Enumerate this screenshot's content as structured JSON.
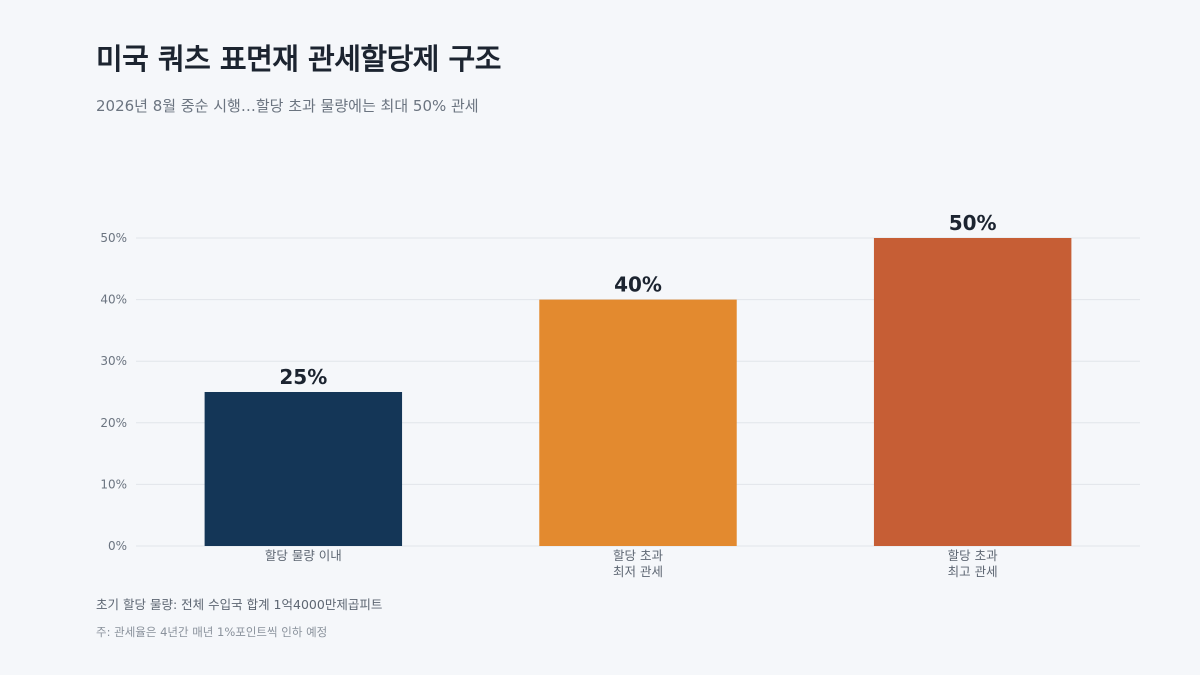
{
  "header": {
    "title": "미국 쿼츠 표면재 관세할당제 구조",
    "subtitle": "2026년 8월 중순 시행…할당 초과 물량에는 최대 50% 관세"
  },
  "notes": {
    "quota": "초기 할당 물량: 전체 수입국 합계 1억4000만제곱피트",
    "footnote": "주: 관세율은 4년간 매년 1%포인트씩 인하 예정"
  },
  "chart_data": {
    "type": "bar",
    "categories": [
      [
        "할당 물량 이내"
      ],
      [
        "할당 초과",
        "최저 관세"
      ],
      [
        "할당 초과",
        "최고 관세"
      ]
    ],
    "values": [
      25,
      40,
      50
    ],
    "value_labels": [
      "25%",
      "40%",
      "50%"
    ],
    "colors": [
      "#143657",
      "#e38a2f",
      "#c65e35"
    ],
    "ylim": [
      0,
      50
    ],
    "yticks": [
      0,
      10,
      20,
      30,
      40,
      50
    ],
    "ytick_labels": [
      "0%",
      "10%",
      "20%",
      "30%",
      "40%",
      "50%"
    ],
    "grid": true
  }
}
